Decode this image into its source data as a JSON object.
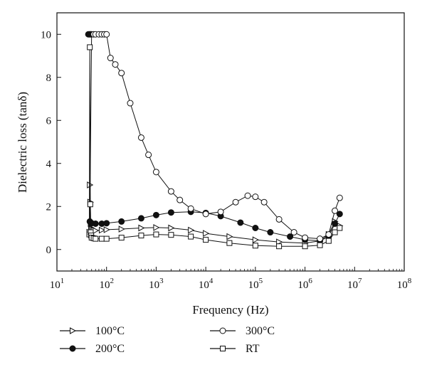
{
  "chart_data": {
    "type": "scatter",
    "xlabel": "Frequency (Hz)",
    "ylabel": "Dielectric loss (tanδ)",
    "x_scale": "log",
    "xlim": [
      10,
      100000000
    ],
    "ylim": [
      -1,
      11
    ],
    "x_tick_labels": [
      {
        "base": "10",
        "exp": "1"
      },
      {
        "base": "10",
        "exp": "2"
      },
      {
        "base": "10",
        "exp": "3"
      },
      {
        "base": "10",
        "exp": "4"
      },
      {
        "base": "10",
        "exp": "5"
      },
      {
        "base": "10",
        "exp": "6"
      },
      {
        "base": "10",
        "exp": "7"
      },
      {
        "base": "10",
        "exp": "8"
      }
    ],
    "y_ticks": [
      "0",
      "2",
      "4",
      "6",
      "8",
      "10"
    ],
    "grid": false,
    "legend_position": "bottom",
    "series": [
      {
        "name": "100°C",
        "marker": "triangle-right-open",
        "x": [
          45,
          46,
          47,
          48,
          49,
          50,
          55,
          60,
          80,
          100,
          200,
          500,
          1000,
          2000,
          5000,
          10000,
          30000,
          100000,
          300000,
          1000000,
          2000000,
          3000000,
          4000000,
          5000000
        ],
        "y": [
          0.8,
          3.0,
          2.2,
          1.2,
          1.0,
          0.95,
          0.9,
          0.88,
          0.9,
          0.92,
          0.95,
          1.0,
          1.02,
          1.0,
          0.9,
          0.75,
          0.6,
          0.45,
          0.35,
          0.3,
          0.4,
          0.7,
          1.3,
          1.1
        ]
      },
      {
        "name": "200°C",
        "marker": "circle-filled",
        "x": [
          43,
          45,
          47,
          50,
          46,
          48,
          50,
          60,
          80,
          100,
          200,
          500,
          1000,
          2000,
          5000,
          10000,
          20000,
          50000,
          100000,
          200000,
          500000,
          1000000,
          2000000,
          3000000,
          4000000,
          5000000
        ],
        "y": [
          10,
          10,
          10,
          10,
          1.3,
          1.25,
          1.22,
          1.2,
          1.2,
          1.22,
          1.3,
          1.45,
          1.6,
          1.72,
          1.75,
          1.7,
          1.55,
          1.25,
          1.0,
          0.8,
          0.6,
          0.45,
          0.4,
          0.6,
          1.2,
          1.65
        ]
      },
      {
        "name": "300°C",
        "marker": "circle-open",
        "x": [
          55,
          60,
          70,
          80,
          90,
          100,
          120,
          150,
          200,
          300,
          500,
          700,
          1000,
          2000,
          3000,
          5000,
          10000,
          20000,
          40000,
          70000,
          100000,
          150000,
          300000,
          600000,
          1000000,
          2000000,
          3000000,
          4000000,
          5000000
        ],
        "y": [
          10,
          10,
          10,
          10,
          10,
          10,
          8.9,
          8.6,
          8.2,
          6.8,
          5.2,
          4.4,
          3.6,
          2.7,
          2.3,
          1.9,
          1.65,
          1.75,
          2.2,
          2.5,
          2.45,
          2.2,
          1.4,
          0.8,
          0.55,
          0.5,
          0.7,
          1.8,
          2.4
        ]
      },
      {
        "name": "RT",
        "marker": "square-open",
        "x": [
          45,
          46,
          47,
          48,
          49,
          50,
          55,
          60,
          80,
          100,
          200,
          500,
          1000,
          2000,
          5000,
          10000,
          30000,
          100000,
          300000,
          1000000,
          2000000,
          3000000,
          4000000,
          5000000
        ],
        "y": [
          0.7,
          9.4,
          2.1,
          0.8,
          0.65,
          0.55,
          0.52,
          0.5,
          0.5,
          0.5,
          0.55,
          0.65,
          0.7,
          0.68,
          0.6,
          0.45,
          0.3,
          0.18,
          0.15,
          0.15,
          0.2,
          0.4,
          0.8,
          1.0
        ]
      }
    ]
  }
}
